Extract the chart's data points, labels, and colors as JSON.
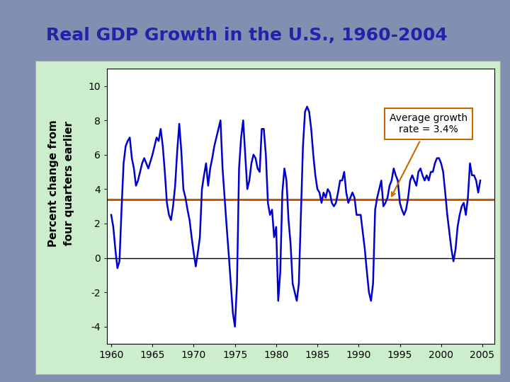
{
  "title": "Real GDP Growth in the U.S., 1960-2004",
  "title_color": "#2222aa",
  "title_fontsize": 18,
  "ylabel_line1": "Percent change from",
  "ylabel_line2": "four quarters earlier",
  "ylabel_fontsize": 11,
  "avg_growth_rate": 3.4,
  "annotation_text": "Average growth\nrate = 3.4%",
  "xlim": [
    1959.5,
    2006.5
  ],
  "ylim": [
    -5,
    11
  ],
  "yticks": [
    -4,
    -2,
    0,
    2,
    4,
    6,
    8,
    10
  ],
  "xticks": [
    1960,
    1965,
    1970,
    1975,
    1980,
    1985,
    1990,
    1995,
    2000,
    2005
  ],
  "line_color": "#0000cc",
  "avg_line_color": "#cc5500",
  "zero_line_color": "black",
  "background_outer": "#8899bb",
  "background_panel": "#c8e8c8",
  "annotation_box_facecolor": "white",
  "annotation_box_edgecolor": "#cc6600",
  "gdp_years": [
    1960.0,
    1960.25,
    1960.5,
    1960.75,
    1961.0,
    1961.25,
    1961.5,
    1961.75,
    1962.0,
    1962.25,
    1962.5,
    1962.75,
    1963.0,
    1963.25,
    1963.5,
    1963.75,
    1964.0,
    1964.25,
    1964.5,
    1964.75,
    1965.0,
    1965.25,
    1965.5,
    1965.75,
    1966.0,
    1966.25,
    1966.5,
    1966.75,
    1967.0,
    1967.25,
    1967.5,
    1967.75,
    1968.0,
    1968.25,
    1968.5,
    1968.75,
    1969.0,
    1969.25,
    1969.5,
    1969.75,
    1970.0,
    1970.25,
    1970.5,
    1970.75,
    1971.0,
    1971.25,
    1971.5,
    1971.75,
    1972.0,
    1972.25,
    1972.5,
    1972.75,
    1973.0,
    1973.25,
    1973.5,
    1973.75,
    1974.0,
    1974.25,
    1974.5,
    1974.75,
    1975.0,
    1975.25,
    1975.5,
    1975.75,
    1976.0,
    1976.25,
    1976.5,
    1976.75,
    1977.0,
    1977.25,
    1977.5,
    1977.75,
    1978.0,
    1978.25,
    1978.5,
    1978.75,
    1979.0,
    1979.25,
    1979.5,
    1979.75,
    1980.0,
    1980.25,
    1980.5,
    1980.75,
    1981.0,
    1981.25,
    1981.5,
    1981.75,
    1982.0,
    1982.25,
    1982.5,
    1982.75,
    1983.0,
    1983.25,
    1983.5,
    1983.75,
    1984.0,
    1984.25,
    1984.5,
    1984.75,
    1985.0,
    1985.25,
    1985.5,
    1985.75,
    1986.0,
    1986.25,
    1986.5,
    1986.75,
    1987.0,
    1987.25,
    1987.5,
    1987.75,
    1988.0,
    1988.25,
    1988.5,
    1988.75,
    1989.0,
    1989.25,
    1989.5,
    1989.75,
    1990.0,
    1990.25,
    1990.5,
    1990.75,
    1991.0,
    1991.25,
    1991.5,
    1991.75,
    1992.0,
    1992.25,
    1992.5,
    1992.75,
    1993.0,
    1993.25,
    1993.5,
    1993.75,
    1994.0,
    1994.25,
    1994.5,
    1994.75,
    1995.0,
    1995.25,
    1995.5,
    1995.75,
    1996.0,
    1996.25,
    1996.5,
    1996.75,
    1997.0,
    1997.25,
    1997.5,
    1997.75,
    1998.0,
    1998.25,
    1998.5,
    1998.75,
    1999.0,
    1999.25,
    1999.5,
    1999.75,
    2000.0,
    2000.25,
    2000.5,
    2000.75,
    2001.0,
    2001.25,
    2001.5,
    2001.75,
    2002.0,
    2002.25,
    2002.5,
    2002.75,
    2003.0,
    2003.25,
    2003.5,
    2003.75,
    2004.0,
    2004.25,
    2004.5,
    2004.75
  ],
  "gdp_values": [
    2.5,
    1.8,
    0.5,
    -0.6,
    -0.2,
    2.8,
    5.5,
    6.5,
    6.8,
    7.0,
    5.8,
    5.2,
    4.2,
    4.5,
    5.0,
    5.5,
    5.8,
    5.5,
    5.2,
    5.6,
    6.0,
    6.5,
    7.0,
    6.8,
    7.5,
    6.5,
    5.0,
    3.2,
    2.5,
    2.2,
    3.0,
    4.2,
    6.2,
    7.8,
    6.2,
    4.0,
    3.5,
    2.8,
    2.2,
    1.2,
    0.3,
    -0.5,
    0.3,
    1.2,
    4.0,
    4.8,
    5.5,
    4.2,
    5.2,
    5.8,
    6.5,
    7.0,
    7.5,
    8.0,
    5.2,
    3.5,
    1.8,
    0.2,
    -1.5,
    -3.2,
    -4.0,
    -1.5,
    5.2,
    7.0,
    8.0,
    6.0,
    4.0,
    4.5,
    5.5,
    6.0,
    5.8,
    5.2,
    5.0,
    7.5,
    7.5,
    6.0,
    3.2,
    2.5,
    2.8,
    1.2,
    1.8,
    -2.5,
    -0.8,
    3.8,
    5.2,
    4.5,
    2.2,
    0.8,
    -1.5,
    -2.0,
    -2.5,
    -1.5,
    2.5,
    6.5,
    8.5,
    8.8,
    8.5,
    7.5,
    6.0,
    4.8,
    4.0,
    3.8,
    3.2,
    3.8,
    3.5,
    4.0,
    3.8,
    3.2,
    3.0,
    3.2,
    3.8,
    4.5,
    4.5,
    5.0,
    3.8,
    3.2,
    3.5,
    3.8,
    3.5,
    2.5,
    2.5,
    2.5,
    1.5,
    0.5,
    -0.8,
    -2.0,
    -2.5,
    -1.5,
    2.8,
    3.5,
    4.0,
    4.5,
    3.0,
    3.2,
    3.5,
    4.2,
    4.5,
    5.2,
    4.8,
    4.5,
    3.2,
    2.8,
    2.5,
    2.8,
    3.5,
    4.5,
    4.8,
    4.5,
    4.2,
    5.0,
    5.2,
    4.8,
    4.5,
    4.8,
    4.5,
    5.0,
    5.0,
    5.5,
    5.8,
    5.8,
    5.5,
    5.0,
    3.8,
    2.5,
    1.5,
    0.5,
    -0.2,
    0.5,
    1.8,
    2.5,
    3.0,
    3.2,
    2.5,
    3.5,
    5.5,
    4.8,
    4.8,
    4.5,
    3.8,
    4.5
  ]
}
